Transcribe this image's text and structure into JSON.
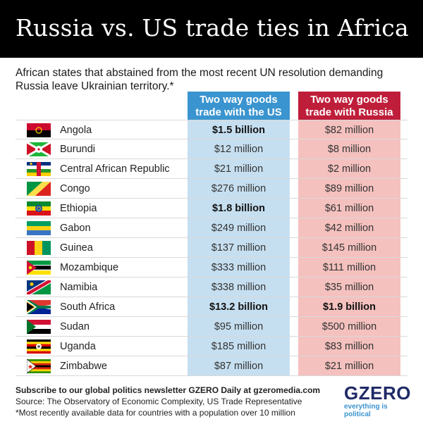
{
  "title": "Russia vs. US trade ties in Africa",
  "subtitle": "African states that abstained from the most recent UN resolution demanding Russia leave Ukrainian territory.*",
  "colors": {
    "us_header": "#3a94cf",
    "us_column": "#c6dff0",
    "russia_header": "#bf1e3a",
    "russia_column": "#f4c1be"
  },
  "chart_data": {
    "type": "table",
    "columns": [
      "Two way goods trade with the US",
      "Two way goods trade with Russia"
    ],
    "rows": [
      {
        "country": "Angola",
        "flag": "angola-flag",
        "us": "$1.5 billion",
        "russia": "$82 million",
        "us_bold": true,
        "russia_bold": false
      },
      {
        "country": "Burundi",
        "flag": "burundi-flag",
        "us": "$12 million",
        "russia": "$8 million",
        "us_bold": false,
        "russia_bold": false
      },
      {
        "country": "Central African Republic",
        "flag": "car-flag",
        "us": "$21 million",
        "russia": "$2 million",
        "us_bold": false,
        "russia_bold": false
      },
      {
        "country": "Congo",
        "flag": "congo-flag",
        "us": "$276 million",
        "russia": "$89 million",
        "us_bold": false,
        "russia_bold": false
      },
      {
        "country": "Ethiopia",
        "flag": "ethiopia-flag",
        "us": "$1.8 billion",
        "russia": "$61 million",
        "us_bold": true,
        "russia_bold": false
      },
      {
        "country": "Gabon",
        "flag": "gabon-flag",
        "us": "$249 million",
        "russia": "$42 million",
        "us_bold": false,
        "russia_bold": false
      },
      {
        "country": "Guinea",
        "flag": "guinea-flag",
        "us": "$137 million",
        "russia": "$145 million",
        "us_bold": false,
        "russia_bold": false
      },
      {
        "country": "Mozambique",
        "flag": "mozambique-flag",
        "us": "$333 million",
        "russia": "$111 million",
        "us_bold": false,
        "russia_bold": false
      },
      {
        "country": "Namibia",
        "flag": "namibia-flag",
        "us": "$338 million",
        "russia": "$35 million",
        "us_bold": false,
        "russia_bold": false
      },
      {
        "country": "South Africa",
        "flag": "south-africa-flag",
        "us": "$13.2 billion",
        "russia": "$1.9 billion",
        "us_bold": true,
        "russia_bold": true
      },
      {
        "country": "Sudan",
        "flag": "sudan-flag",
        "us": "$95 million",
        "russia": "$500 million",
        "us_bold": false,
        "russia_bold": false
      },
      {
        "country": "Uganda",
        "flag": "uganda-flag",
        "us": "$185 million",
        "russia": "$83 million",
        "us_bold": false,
        "russia_bold": false
      },
      {
        "country": "Zimbabwe",
        "flag": "zimbabwe-flag",
        "us": "$87 million",
        "russia": "$21 million",
        "us_bold": false,
        "russia_bold": false
      }
    ]
  },
  "footer": {
    "subscribe": "Subscribe to our global politics newsletter GZERO Daily at gzeromedia.com",
    "source": "Source: The Observatory of Economic Complexity, US Trade Representative",
    "note": "*Most recently available data for countries with a population over 10 million"
  },
  "logo": {
    "name": "GZERO",
    "tagline": "everything is political"
  }
}
